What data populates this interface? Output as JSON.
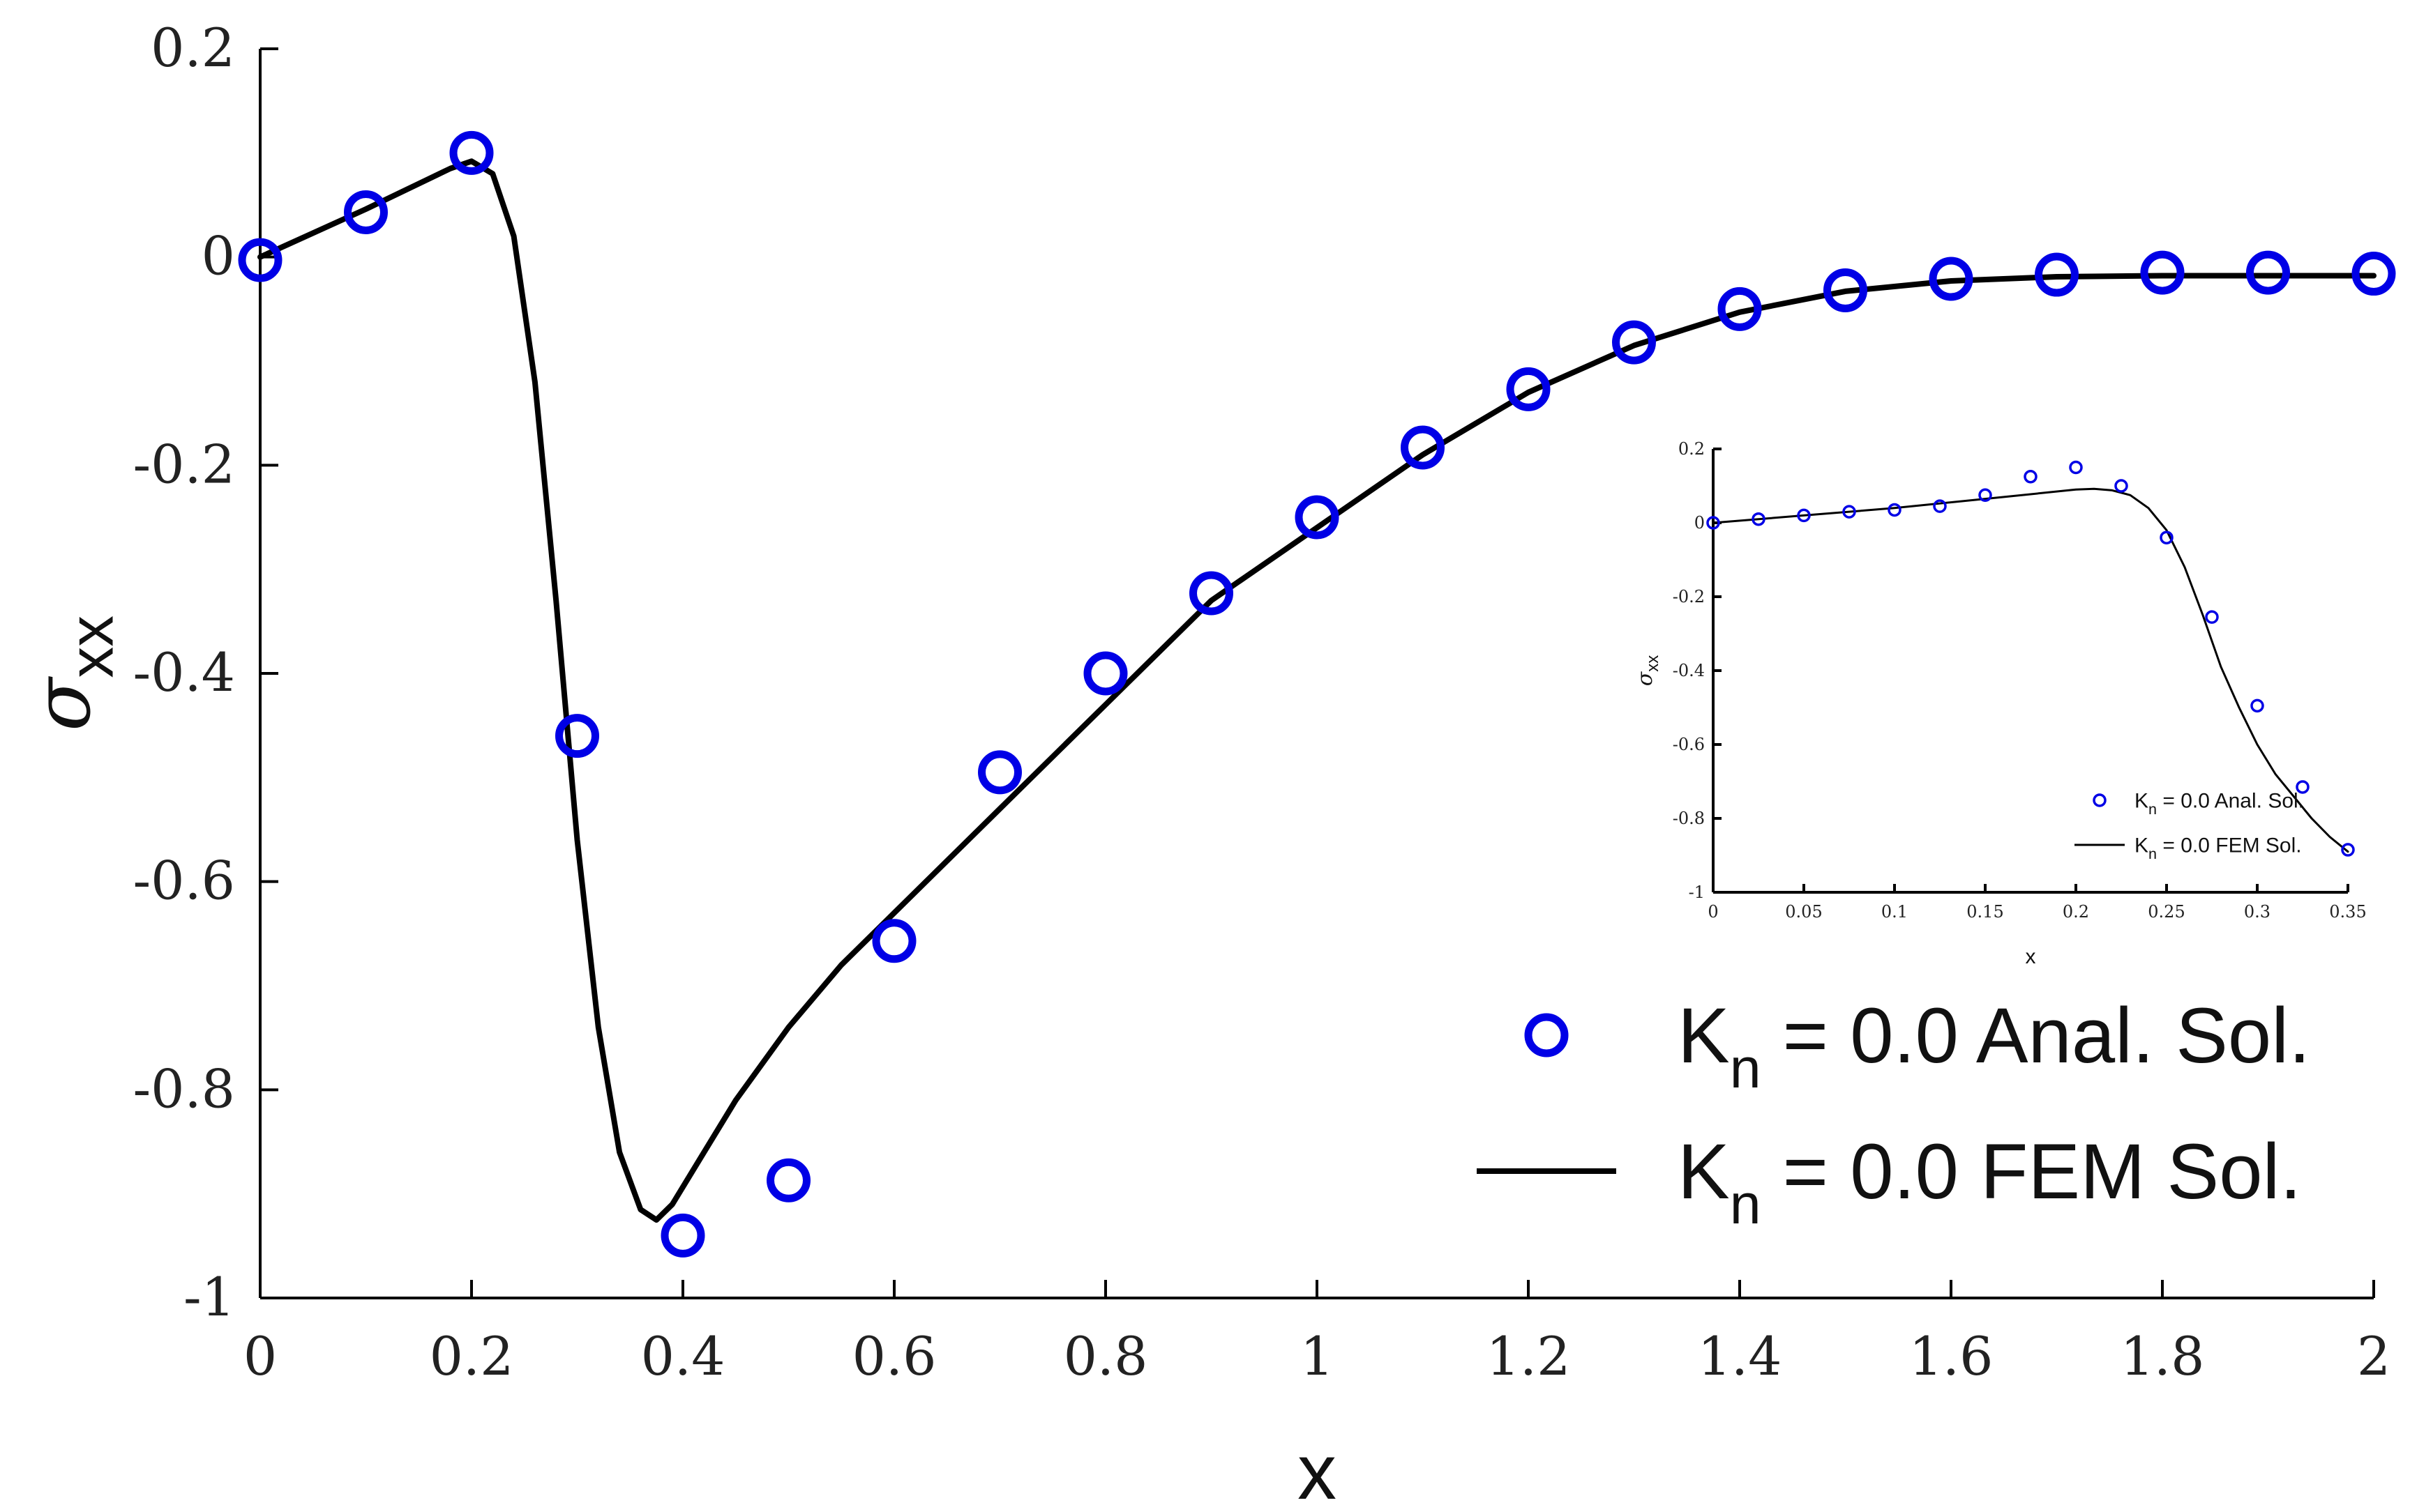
{
  "chart_data": [
    {
      "type": "line",
      "title": "",
      "xlabel": "x",
      "ylabel": {
        "symbol": "σ",
        "subscript": "xx"
      },
      "xlim": [
        0,
        2
      ],
      "ylim": [
        -1,
        0.2
      ],
      "x_ticks": [
        "0",
        "0.2",
        "0.4",
        "0.6",
        "0.8",
        "1",
        "1.2",
        "1.4",
        "1.6",
        "1.8",
        "2"
      ],
      "y_ticks": [
        "0.2",
        "0",
        "-0.2",
        "-0.4",
        "-0.6",
        "-0.8",
        "-1"
      ],
      "grid": false,
      "legend_position": "bottom-right",
      "legend": [
        {
          "kind": "marker",
          "main": "K",
          "sub": "n",
          "text": " = 0.0 Anal. Sol."
        },
        {
          "kind": "line",
          "main": "K",
          "sub": "n",
          "text": " = 0.0 FEM Sol."
        }
      ],
      "series": [
        {
          "name": "Kn = 0.0 Anal. Sol.",
          "style": "marker",
          "color": "#0000e6",
          "x": [
            0,
            0.1,
            0.2,
            0.3,
            0.4,
            0.5,
            0.6,
            0.7,
            0.8,
            0.9,
            1.0,
            1.1,
            1.2,
            1.3,
            1.4,
            1.5,
            1.6,
            1.7,
            1.8,
            1.9,
            2.0
          ],
          "y": [
            -0.003,
            0.043,
            0.1,
            -0.46,
            -0.94,
            -0.887,
            -0.657,
            -0.495,
            -0.4,
            -0.323,
            -0.25,
            -0.183,
            -0.127,
            -0.082,
            -0.05,
            -0.032,
            -0.021,
            -0.017,
            -0.015,
            -0.015,
            -0.016
          ]
        },
        {
          "name": "Kn = 0.0 FEM Sol.",
          "style": "line",
          "color": "#000000",
          "x": [
            0,
            0.1,
            0.18,
            0.2,
            0.22,
            0.24,
            0.26,
            0.28,
            0.3,
            0.32,
            0.34,
            0.36,
            0.375,
            0.39,
            0.42,
            0.45,
            0.5,
            0.55,
            0.6,
            0.7,
            0.8,
            0.9,
            1.0,
            1.1,
            1.2,
            1.3,
            1.4,
            1.5,
            1.6,
            1.7,
            1.8,
            1.9,
            2.0
          ],
          "y": [
            0,
            0.046,
            0.085,
            0.092,
            0.08,
            0.02,
            -0.12,
            -0.33,
            -0.56,
            -0.74,
            -0.86,
            -0.915,
            -0.925,
            -0.91,
            -0.86,
            -0.81,
            -0.74,
            -0.68,
            -0.63,
            -0.53,
            -0.43,
            -0.33,
            -0.26,
            -0.19,
            -0.13,
            -0.085,
            -0.053,
            -0.033,
            -0.023,
            -0.019,
            -0.018,
            -0.018,
            -0.018
          ]
        }
      ]
    },
    {
      "type": "line",
      "title": "",
      "xlabel": "x",
      "ylabel": {
        "symbol": "σ",
        "subscript": "xx"
      },
      "xlim": [
        0,
        0.35
      ],
      "ylim": [
        -1,
        0.2
      ],
      "x_ticks": [
        "0",
        "0.05",
        "0.1",
        "0.15",
        "0.2",
        "0.25",
        "0.3",
        "0.35"
      ],
      "y_ticks": [
        "0.2",
        "0",
        "-0.2",
        "-0.4",
        "-0.6",
        "-0.8",
        "-1"
      ],
      "grid": false,
      "legend_position": "bottom-right",
      "legend": [
        {
          "kind": "marker",
          "main": "K",
          "sub": "n",
          "text": " = 0.0 Anal. Sol."
        },
        {
          "kind": "line",
          "main": "K",
          "sub": "n",
          "text": " = 0.0 FEM Sol."
        }
      ],
      "series": [
        {
          "name": "Kn = 0.0 Anal. Sol.",
          "style": "marker",
          "color": "#0000e6",
          "x": [
            0,
            0.025,
            0.05,
            0.075,
            0.1,
            0.125,
            0.15,
            0.175,
            0.2,
            0.225,
            0.25,
            0.275,
            0.3,
            0.325,
            0.35
          ],
          "y": [
            0,
            0.01,
            0.02,
            0.03,
            0.035,
            0.045,
            0.075,
            0.125,
            0.15,
            0.1,
            -0.04,
            -0.255,
            -0.495,
            -0.715,
            -0.885
          ]
        },
        {
          "name": "Kn = 0.0 FEM Sol.",
          "style": "line",
          "color": "#000000",
          "x": [
            0,
            0.05,
            0.1,
            0.15,
            0.2,
            0.21,
            0.22,
            0.23,
            0.24,
            0.25,
            0.26,
            0.27,
            0.28,
            0.29,
            0.3,
            0.31,
            0.32,
            0.33,
            0.34,
            0.35
          ],
          "y": [
            0,
            0.02,
            0.04,
            0.065,
            0.09,
            0.092,
            0.088,
            0.075,
            0.04,
            -0.02,
            -0.12,
            -0.25,
            -0.39,
            -0.5,
            -0.6,
            -0.68,
            -0.74,
            -0.8,
            -0.85,
            -0.89
          ]
        }
      ]
    }
  ]
}
